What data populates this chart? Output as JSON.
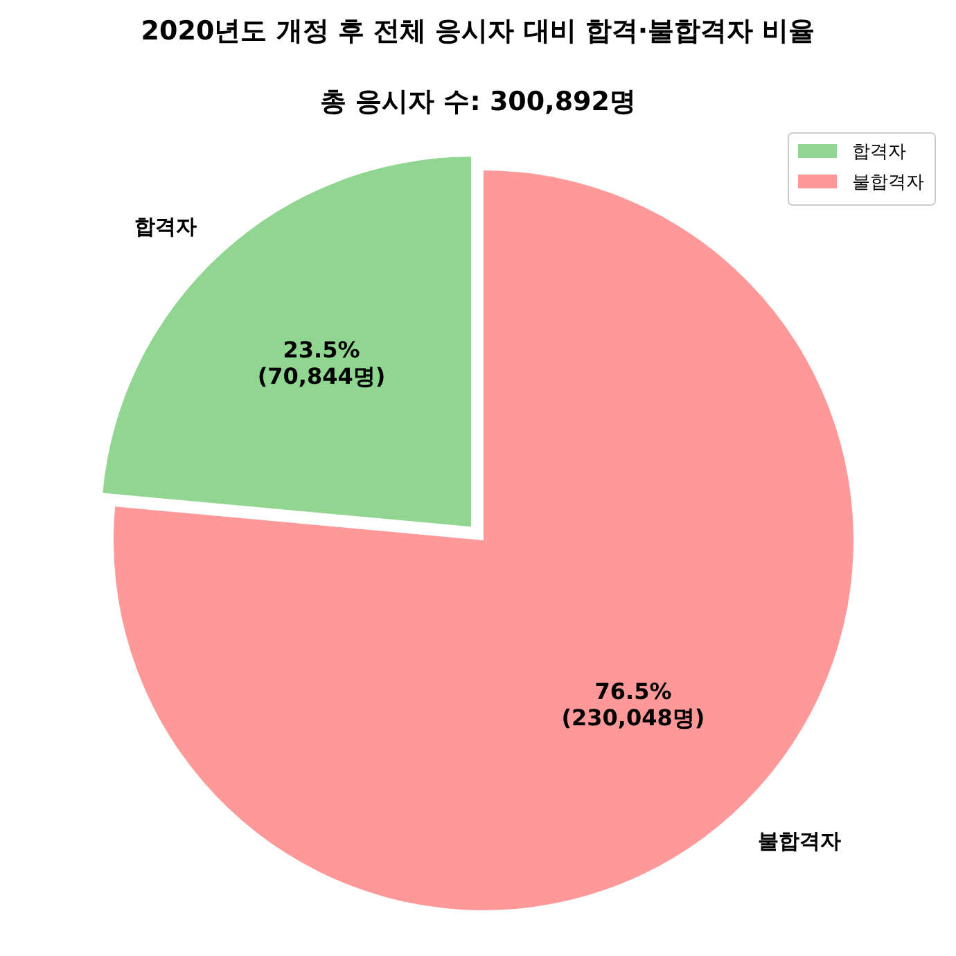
{
  "chart_data": {
    "type": "pie",
    "title": "2020년도 개정 후 전체 응시자 대비 합격·불합격자 비율",
    "subtitle": "총 응시자 수: 300,892명",
    "categories": [
      "합격자",
      "불합격자"
    ],
    "values": [
      70844,
      230048
    ],
    "colors": [
      "#90d590",
      "#ff9999"
    ],
    "value_labels": [
      "23.5%\n(70,844명)",
      "76.5%\n(230,048명)"
    ],
    "legend": "top right"
  }
}
